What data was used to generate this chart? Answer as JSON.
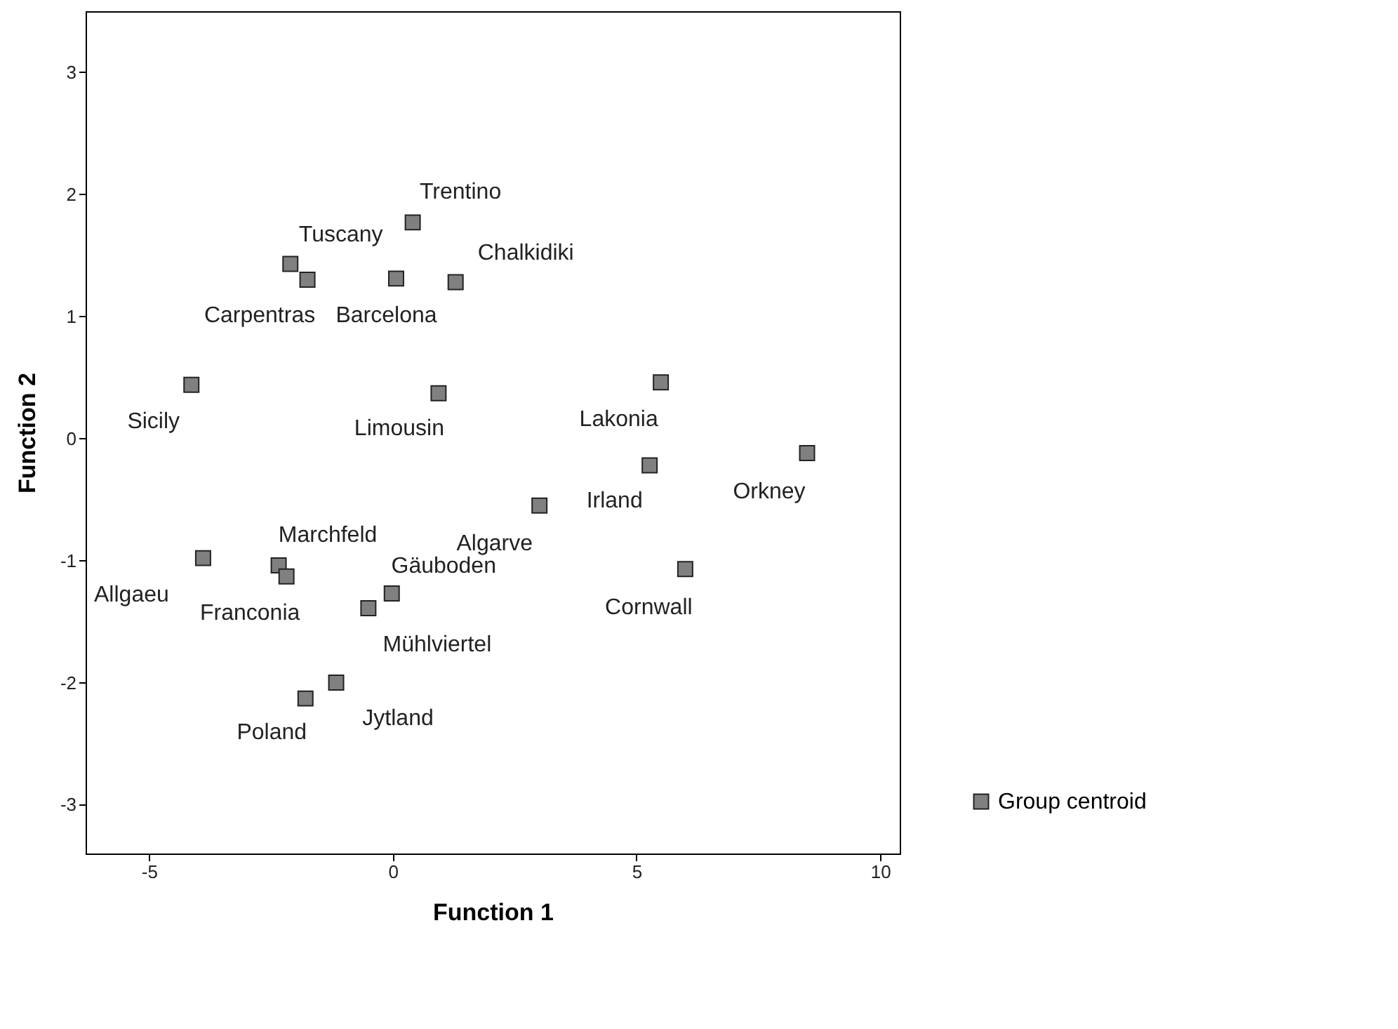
{
  "chart_data": {
    "type": "scatter",
    "xlabel": "Function 1",
    "ylabel": "Function 2",
    "xlim": [
      -6.3,
      10.4
    ],
    "ylim": [
      -3.4,
      3.5
    ],
    "xticks": [
      -5,
      0,
      5,
      10
    ],
    "yticks": [
      -3,
      -2,
      -1,
      0,
      1,
      2,
      3
    ],
    "grid": false,
    "legend": "bottom right",
    "marker": "square",
    "series": [
      {
        "name": "Group centroid",
        "color": "#808080",
        "x": [
          0.41,
          -2.1,
          -1.75,
          0.07,
          1.29,
          -4.13,
          0.94,
          5.5,
          8.5,
          5.27,
          3.01,
          -3.89,
          -2.34,
          -2.18,
          -0.02,
          -0.5,
          6.0,
          -1.16,
          -1.79
        ],
        "values": [
          1.77,
          1.43,
          1.3,
          1.31,
          1.28,
          0.44,
          0.37,
          0.46,
          -0.12,
          -0.22,
          -0.55,
          -0.98,
          -1.04,
          -1.13,
          -1.27,
          -1.39,
          -1.07,
          -2.0,
          -2.13
        ],
        "value_labels": [
          "Trentino",
          "Tuscany",
          "Carpentras",
          "Barcelona",
          "Chalkidiki",
          "Sicily",
          "Limousin",
          "Lakonia",
          "Orkney",
          "Irland",
          "Algarve",
          "Allgaeu",
          "Marchfeld",
          "Franconia",
          "Gäuboden",
          "Mühlviertel",
          "Cornwall",
          "Jytland",
          "Poland"
        ]
      }
    ]
  }
}
